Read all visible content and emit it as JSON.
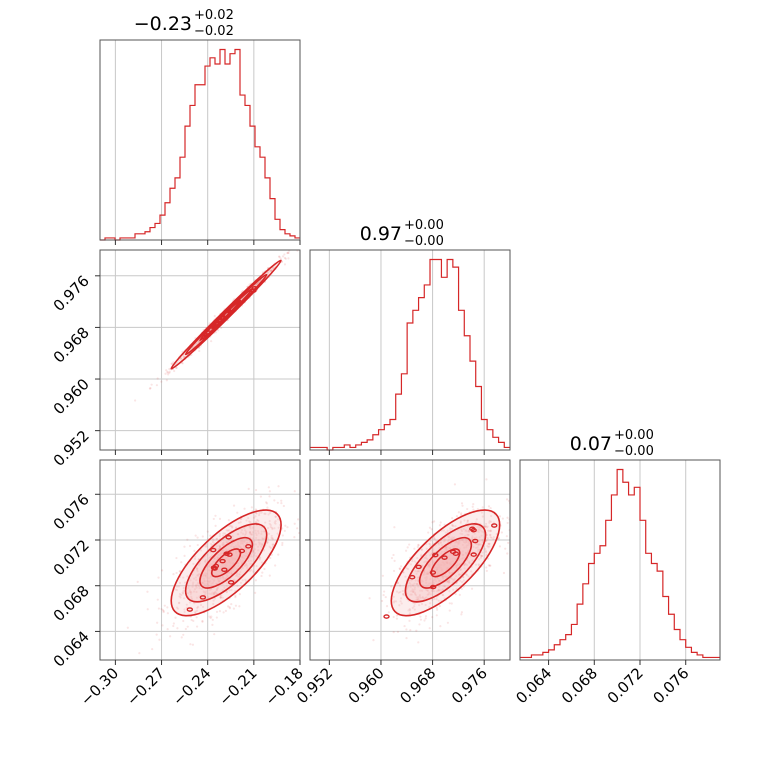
{
  "chart_data": {
    "type": "corner",
    "color": "#d62728",
    "fill_color": "#f4b6b6",
    "grid": true,
    "titles": [
      {
        "value": "−0.23",
        "plus": "+0.02",
        "minus": "−0.02"
      },
      {
        "value": "0.97",
        "plus": "+0.00",
        "minus": "−0.00"
      },
      {
        "value": "0.07",
        "plus": "+0.00",
        "minus": "−0.00"
      }
    ],
    "params": [
      {
        "range": [
          -0.31,
          -0.18
        ],
        "ticks": [
          -0.3,
          -0.27,
          -0.24,
          -0.21,
          -0.18
        ],
        "tick_labels": [
          "−0.30",
          "−0.27",
          "−0.24",
          "−0.21",
          "−0.18"
        ]
      },
      {
        "range": [
          0.949,
          0.98
        ],
        "ticks": [
          0.952,
          0.96,
          0.968,
          0.976
        ],
        "tick_labels": [
          "0.952",
          "0.960",
          "0.968",
          "0.976"
        ]
      },
      {
        "range": [
          0.0615,
          0.079
        ],
        "ticks": [
          0.064,
          0.068,
          0.072,
          0.076
        ],
        "tick_labels": [
          "0.064",
          "0.068",
          "0.072",
          "0.076"
        ]
      }
    ],
    "histograms": [
      {
        "bins": [
          -0.31,
          -0.18
        ],
        "counts": [
          0,
          1,
          1,
          0,
          1,
          1,
          1,
          3,
          3,
          4,
          6,
          8,
          12,
          18,
          25,
          30,
          40,
          55,
          65,
          75,
          75,
          84,
          88,
          85,
          92,
          85,
          90,
          92,
          70,
          65,
          55,
          45,
          40,
          30,
          20,
          10,
          5,
          3,
          2,
          1
        ]
      },
      {
        "bins": [
          0.949,
          0.98
        ],
        "counts": [
          1,
          1,
          1,
          0,
          1,
          1,
          2,
          1,
          2,
          3,
          4,
          6,
          8,
          10,
          12,
          22,
          30,
          50,
          55,
          60,
          65,
          75,
          75,
          68,
          75,
          72,
          55,
          45,
          35,
          25,
          12,
          8,
          5,
          3,
          1
        ]
      },
      {
        "bins": [
          0.0615,
          0.079
        ],
        "counts": [
          1,
          1,
          2,
          2,
          3,
          4,
          6,
          8,
          10,
          14,
          22,
          30,
          38,
          42,
          45,
          55,
          65,
          75,
          70,
          65,
          68,
          55,
          42,
          38,
          35,
          25,
          18,
          12,
          8,
          5,
          3,
          2,
          1,
          1,
          1
        ]
      }
    ],
    "correlations": [
      {
        "x_param": 0,
        "y_param": 1,
        "x_center": -0.228,
        "y_center": 0.97,
        "x_sd": 0.017,
        "y_sd": 0.004,
        "rho": 0.995
      },
      {
        "x_param": 0,
        "y_param": 2,
        "x_center": -0.228,
        "y_center": 0.07,
        "x_sd": 0.017,
        "y_sd": 0.0022,
        "rho": 0.72
      },
      {
        "x_param": 1,
        "y_param": 2,
        "x_center": 0.97,
        "y_center": 0.07,
        "x_sd": 0.004,
        "y_sd": 0.0022,
        "rho": 0.72
      }
    ]
  }
}
